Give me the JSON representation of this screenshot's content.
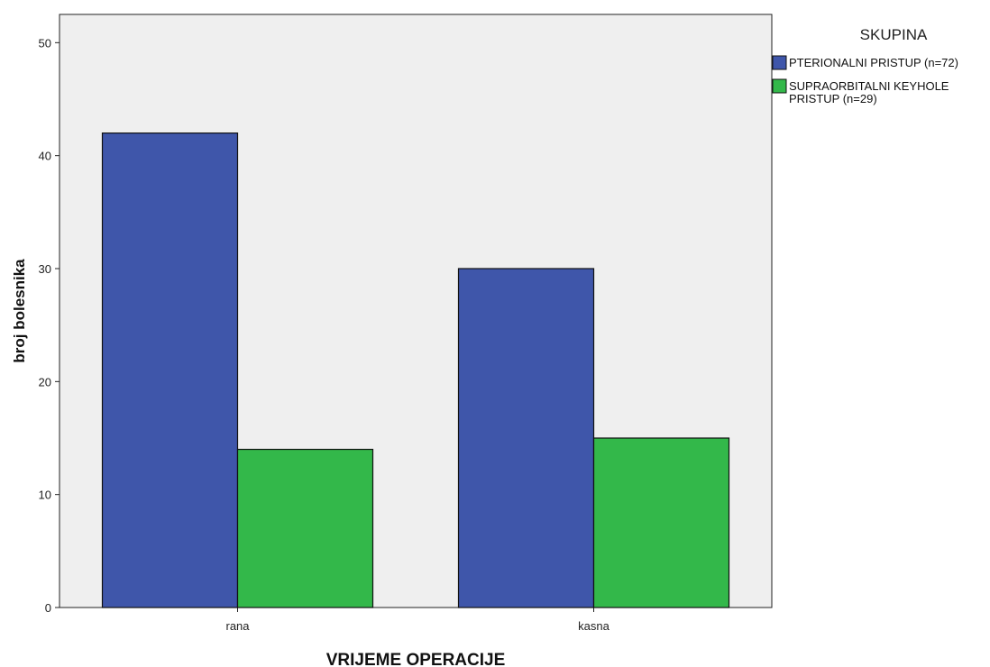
{
  "chart_data": {
    "type": "bar",
    "categories": [
      "rana",
      "kasna"
    ],
    "series": [
      {
        "name": "PTERIONALNI PRISTUP (n=72)",
        "name_lines": [
          "PTERIONALNI PRISTUP (n=72)"
        ],
        "color": "#3f56aa",
        "values": [
          42,
          30
        ]
      },
      {
        "name": "SUPRAORBITALNI KEYHOLE PRISTUP (n=29)",
        "name_lines": [
          "SUPRAORBITALNI KEYHOLE",
          "PRISTUP (n=29)"
        ],
        "color": "#33b84a",
        "values": [
          14,
          15
        ]
      }
    ],
    "xlabel": "VRIJEME OPERACIJE",
    "ylabel": "broj bolesnika",
    "ylim": [
      0,
      52.5
    ],
    "yticks": [
      0,
      10,
      20,
      30,
      40,
      50
    ],
    "legend_title": "SKUPINA",
    "legend_position": "top-right outside",
    "plot_background": "#efefef",
    "grid": false
  }
}
